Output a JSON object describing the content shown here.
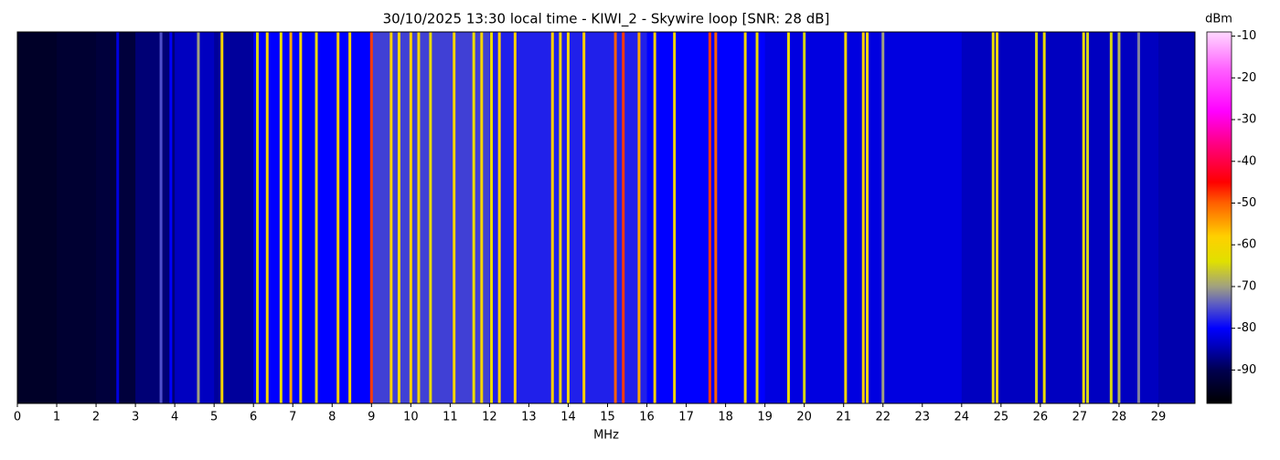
{
  "chart_data": {
    "type": "waterfall",
    "title": "30/10/2025 13:30 local time - KIWI_2 - Skywire loop [SNR: 28 dB]",
    "x_label": "MHz",
    "colorbar_label": "dBm",
    "xlim": [
      0,
      29.93
    ],
    "xticks": [
      0,
      1,
      2,
      3,
      4,
      5,
      6,
      7,
      8,
      9,
      10,
      11,
      12,
      13,
      14,
      15,
      16,
      17,
      18,
      19,
      20,
      21,
      22,
      23,
      24,
      25,
      26,
      27,
      28,
      29
    ],
    "clim": [
      -98,
      -9
    ],
    "cticks": [
      -10,
      -20,
      -30,
      -40,
      -50,
      -60,
      -70,
      -80,
      -90
    ],
    "colormap": [
      {
        "value": -98,
        "color": "#000000"
      },
      {
        "value": -90,
        "color": "#000050"
      },
      {
        "value": -84,
        "color": "#0000c0"
      },
      {
        "value": -80,
        "color": "#0000ff"
      },
      {
        "value": -74,
        "color": "#6060c0"
      },
      {
        "value": -70,
        "color": "#a0a080"
      },
      {
        "value": -64,
        "color": "#e0e000"
      },
      {
        "value": -58,
        "color": "#ffd000"
      },
      {
        "value": -50,
        "color": "#ff6000"
      },
      {
        "value": -45,
        "color": "#ff0000"
      },
      {
        "value": -36,
        "color": "#ff0080"
      },
      {
        "value": -28,
        "color": "#ff00ff"
      },
      {
        "value": -18,
        "color": "#ff60ff"
      },
      {
        "value": -9,
        "color": "#ffd8ff"
      }
    ],
    "floor_bins": [
      0,
      1,
      2,
      3,
      4,
      5,
      6,
      7,
      8,
      9,
      10,
      11,
      12,
      13,
      14,
      15,
      16,
      17,
      18,
      19,
      20,
      21,
      22,
      23,
      24,
      25,
      26,
      27,
      28,
      29,
      29.93
    ],
    "floor_levels": [
      -94,
      -93,
      -92,
      -88,
      -84,
      -86,
      -80,
      -80,
      -80,
      -76,
      -76,
      -76,
      -78,
      -78,
      -78,
      -78,
      -80,
      -80,
      -80,
      -82,
      -82,
      -82,
      -82,
      -82,
      -84,
      -84,
      -84,
      -84,
      -84,
      -85
    ],
    "signals": {
      "freq": [
        2.55,
        3.65,
        3.9,
        4.6,
        5.2,
        6.1,
        6.35,
        6.7,
        6.95,
        7.2,
        7.6,
        8.15,
        8.45,
        9.0,
        9.5,
        9.7,
        10.0,
        10.2,
        10.5,
        11.1,
        11.6,
        11.8,
        12.05,
        12.25,
        12.65,
        13.6,
        13.8,
        14.0,
        14.4,
        15.2,
        15.4,
        15.8,
        16.2,
        16.7,
        17.6,
        17.75,
        18.5,
        18.8,
        19.6,
        20.0,
        21.05,
        21.5,
        21.6,
        22.0,
        24.8,
        24.9,
        25.9,
        26.1,
        27.1,
        27.2,
        27.8,
        28.0,
        28.5
      ],
      "level": [
        -82,
        -75,
        -80,
        -70,
        -60,
        -65,
        -60,
        -62,
        -55,
        -60,
        -62,
        -58,
        -60,
        -48,
        -58,
        -60,
        -58,
        -60,
        -62,
        -60,
        -62,
        -60,
        -62,
        -58,
        -58,
        -58,
        -60,
        -60,
        -58,
        -50,
        -48,
        -55,
        -58,
        -60,
        -48,
        -50,
        -60,
        -62,
        -62,
        -65,
        -60,
        -58,
        -60,
        -70,
        -62,
        -60,
        -65,
        -62,
        -62,
        -65,
        -65,
        -68,
        -72
      ]
    }
  }
}
